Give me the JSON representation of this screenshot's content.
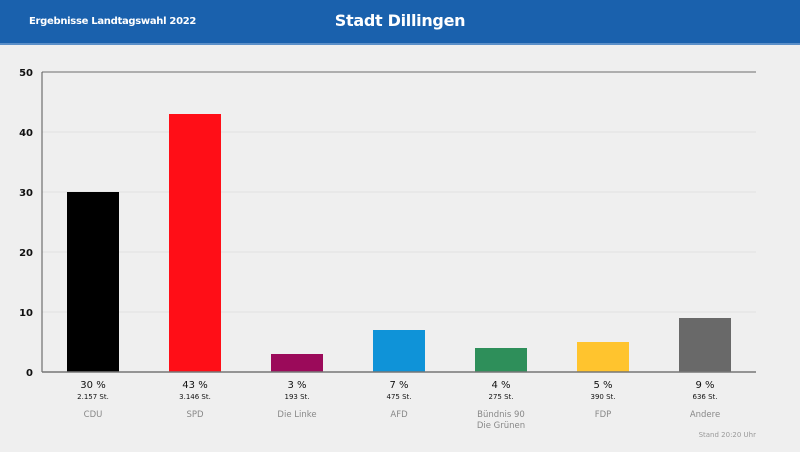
{
  "header": {
    "subtitle": "Ergebnisse Landtagswahl 2022",
    "title": "Stadt Dillingen"
  },
  "footer": {
    "stand": "Stand 20:20 Uhr"
  },
  "chart_data": {
    "type": "bar",
    "title": "Stadt Dillingen",
    "categories": [
      "CDU",
      "SPD",
      "Die Linke",
      "AFD",
      "Bündnis 90 Die Grünen",
      "FDP",
      "Andere"
    ],
    "category_lines": [
      [
        "CDU"
      ],
      [
        "SPD"
      ],
      [
        "Die Linke"
      ],
      [
        "AFD"
      ],
      [
        "Bündnis 90",
        "Die Grünen"
      ],
      [
        "FDP"
      ],
      [
        "Andere"
      ]
    ],
    "values": [
      30,
      43,
      3,
      7,
      4,
      5,
      9
    ],
    "percent_labels": [
      "30 %",
      "43 %",
      "3 %",
      "7 %",
      "4 %",
      "5 %",
      "9 %"
    ],
    "votes_labels": [
      "2.157 St.",
      "3.146 St.",
      "193 St.",
      "475 St.",
      "275 St.",
      "390 St.",
      "636 St."
    ],
    "colors": [
      "#000000",
      "#ff0e17",
      "#9b0a5a",
      "#0f93d8",
      "#2e8f5a",
      "#ffc42e",
      "#696969"
    ],
    "ylim": [
      0,
      50
    ],
    "yticks": [
      0,
      10,
      20,
      30,
      40,
      50
    ],
    "grid": true
  }
}
